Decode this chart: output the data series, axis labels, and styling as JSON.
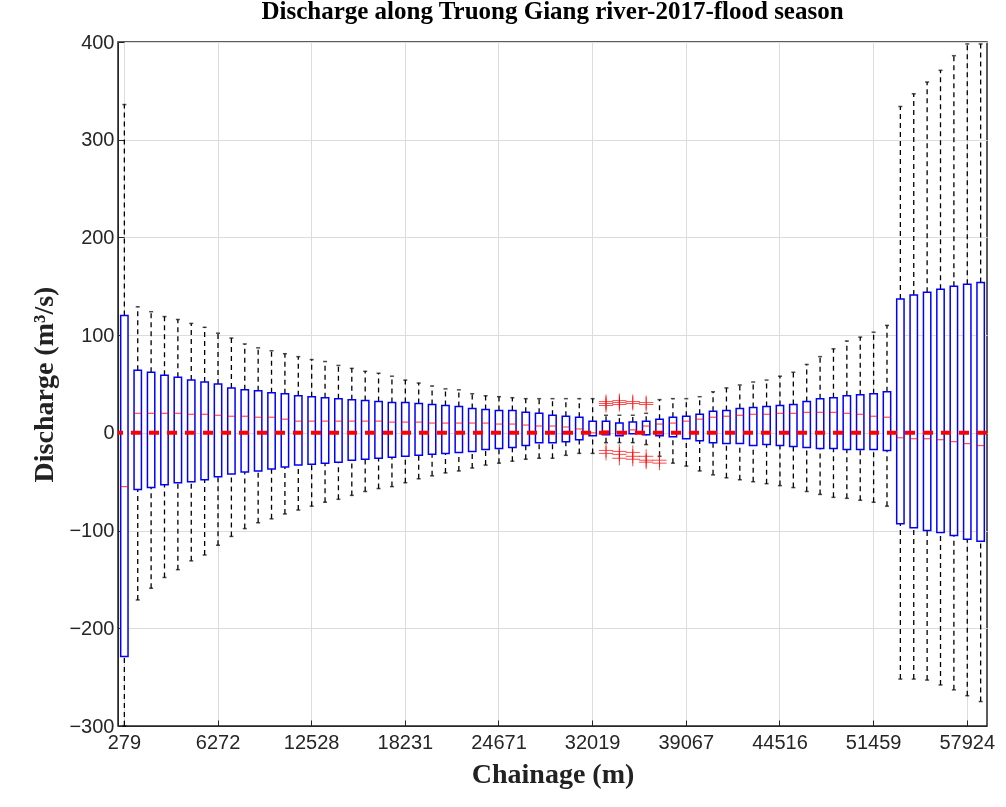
{
  "chart_data": {
    "type": "box",
    "title": "Discharge along Truong Giang river-2017-flood season",
    "xlabel": "Chainage (m)",
    "ylabel": "Discharge (m³/s)",
    "categories": [
      "279",
      null,
      null,
      null,
      null,
      null,
      null,
      "6272",
      null,
      null,
      null,
      null,
      null,
      null,
      "12528",
      null,
      null,
      null,
      null,
      null,
      null,
      "18231",
      null,
      null,
      null,
      null,
      null,
      null,
      "24671",
      null,
      null,
      null,
      null,
      null,
      null,
      "32019",
      null,
      null,
      null,
      null,
      null,
      null,
      "39067",
      null,
      null,
      null,
      null,
      null,
      null,
      "44516",
      null,
      null,
      null,
      null,
      null,
      null,
      "51459",
      null,
      null,
      null,
      null,
      null,
      null,
      "57924",
      null
    ],
    "ylim": [
      -300,
      400
    ],
    "yticks": [
      -300,
      -200,
      -100,
      0,
      100,
      200,
      300,
      400
    ],
    "grid": true,
    "marker": "cross",
    "ref_lines": [
      {
        "axis": "y",
        "value": 0,
        "color": "#ff0000",
        "line_style": "dashed"
      }
    ],
    "series": [
      {
        "color": "#0000ff",
        "boxes": [
          {
            "low": -300,
            "q1": -229,
            "median": -55,
            "q3": 120,
            "high": 336
          },
          {
            "low": -171,
            "q1": -58,
            "median": 20,
            "q3": 64,
            "high": 129
          },
          {
            "low": -159,
            "q1": -56,
            "median": 20,
            "q3": 62,
            "high": 124
          },
          {
            "low": -148,
            "q1": -53,
            "median": 20,
            "q3": 59,
            "high": 119
          },
          {
            "low": -140,
            "q1": -51,
            "median": 20,
            "q3": 57,
            "high": 116
          },
          {
            "low": -131,
            "q1": -50,
            "median": 19,
            "q3": 54,
            "high": 112
          },
          {
            "low": -125,
            "q1": -48,
            "median": 19,
            "q3": 52,
            "high": 108
          },
          {
            "low": -115,
            "q1": -45,
            "median": 18,
            "q3": 50,
            "high": 102
          },
          {
            "low": -106,
            "q1": -42,
            "median": 17,
            "q3": 46,
            "high": 97
          },
          {
            "low": -98,
            "q1": -40,
            "median": 17,
            "q3": 44,
            "high": 91
          },
          {
            "low": -92,
            "q1": -39,
            "median": 16,
            "q3": 43,
            "high": 87
          },
          {
            "low": -88,
            "q1": -37,
            "median": 16,
            "q3": 41,
            "high": 84
          },
          {
            "low": -83,
            "q1": -35,
            "median": 14,
            "q3": 40,
            "high": 81
          },
          {
            "low": -79,
            "q1": -33,
            "median": 12,
            "q3": 38,
            "high": 78
          },
          {
            "low": -75,
            "q1": -32,
            "median": 12,
            "q3": 37,
            "high": 75
          },
          {
            "low": -71,
            "q1": -31,
            "median": 12,
            "q3": 36,
            "high": 73
          },
          {
            "low": -68,
            "q1": -30,
            "median": 12,
            "q3": 35,
            "high": 69
          },
          {
            "low": -64,
            "q1": -28,
            "median": 12,
            "q3": 34,
            "high": 66
          },
          {
            "low": -60,
            "q1": -27,
            "median": 12,
            "q3": 33,
            "high": 63
          },
          {
            "low": -57,
            "q1": -26,
            "median": 12,
            "q3": 32,
            "high": 61
          },
          {
            "low": -55,
            "q1": -25,
            "median": 11,
            "q3": 31,
            "high": 58
          },
          {
            "low": -51,
            "q1": -24,
            "median": 11,
            "q3": 31,
            "high": 54
          },
          {
            "low": -47,
            "q1": -23,
            "median": 11,
            "q3": 30,
            "high": 51
          },
          {
            "low": -44,
            "q1": -22,
            "median": 10,
            "q3": 29,
            "high": 48
          },
          {
            "low": -41,
            "q1": -21,
            "median": 10,
            "q3": 28,
            "high": 45
          },
          {
            "low": -39,
            "q1": -20,
            "median": 10,
            "q3": 27,
            "high": 44
          },
          {
            "low": -36,
            "q1": -19,
            "median": 10,
            "q3": 25,
            "high": 40
          },
          {
            "low": -33,
            "q1": -17,
            "median": 10,
            "q3": 24,
            "high": 38
          },
          {
            "low": -31,
            "q1": -16,
            "median": 9,
            "q3": 23,
            "high": 37
          },
          {
            "low": -29,
            "q1": -15,
            "median": 9,
            "q3": 23,
            "high": 36
          },
          {
            "low": -27,
            "q1": -13,
            "median": 8,
            "q3": 21,
            "high": 35
          },
          {
            "low": -26,
            "q1": -10,
            "median": 7,
            "q3": 20,
            "high": 35
          },
          {
            "low": -26,
            "q1": -10,
            "median": 7,
            "q3": 18,
            "high": 35
          },
          {
            "low": -23,
            "q1": -9,
            "median": 6,
            "q3": 17,
            "high": 35
          },
          {
            "low": -21,
            "q1": -7,
            "median": 4,
            "q3": 16,
            "high": 35
          },
          {
            "low": -21,
            "q1": -3,
            "median": 0,
            "q3": 12,
            "high": 35
          },
          {
            "low": -10,
            "q1": -2,
            "median": 2,
            "q3": 12,
            "high": 18,
            "outliers": [
              32,
              30,
              28,
              -18,
              -21
            ]
          },
          {
            "low": -10,
            "q1": -3,
            "median": 1,
            "q3": 10,
            "high": 18,
            "outliers": [
              33,
              31,
              29,
              -19,
              -22,
              -26
            ]
          },
          {
            "low": -10,
            "q1": -1,
            "median": 3,
            "q3": 11,
            "high": 18,
            "outliers": [
              32,
              30,
              -20,
              -24,
              -27
            ]
          },
          {
            "low": -12,
            "q1": -2,
            "median": 7,
            "q3": 12,
            "high": 20,
            "outliers": [
              31,
              29,
              -24,
              -28,
              -30
            ]
          },
          {
            "low": -24,
            "q1": -3,
            "median": 9,
            "q3": 14,
            "high": 34,
            "outliers": [
              -28,
              -31
            ]
          },
          {
            "low": -31,
            "q1": -4,
            "median": 10,
            "q3": 16,
            "high": 35
          },
          {
            "low": -34,
            "q1": -6,
            "median": 12,
            "q3": 17,
            "high": 35
          },
          {
            "low": -39,
            "q1": -8,
            "median": 14,
            "q3": 19,
            "high": 37
          },
          {
            "low": -43,
            "q1": -10,
            "median": 16,
            "q3": 22,
            "high": 42
          },
          {
            "low": -46,
            "q1": -11,
            "median": 17,
            "q3": 23,
            "high": 46
          },
          {
            "low": -48,
            "q1": -11,
            "median": 18,
            "q3": 25,
            "high": 49
          },
          {
            "low": -50,
            "q1": -13,
            "median": 19,
            "q3": 26,
            "high": 52
          },
          {
            "low": -52,
            "q1": -12,
            "median": 19,
            "q3": 27,
            "high": 54
          },
          {
            "low": -54,
            "q1": -13,
            "median": 20,
            "q3": 28,
            "high": 58
          },
          {
            "low": -56,
            "q1": -14,
            "median": 20,
            "q3": 29,
            "high": 62
          },
          {
            "low": -60,
            "q1": -15,
            "median": 21,
            "q3": 32,
            "high": 70
          },
          {
            "low": -63,
            "q1": -16,
            "median": 21,
            "q3": 35,
            "high": 78
          },
          {
            "low": -66,
            "q1": -16,
            "median": 21,
            "q3": 36,
            "high": 86
          },
          {
            "low": -67,
            "q1": -17,
            "median": 20,
            "q3": 38,
            "high": 94
          },
          {
            "low": -69,
            "q1": -17,
            "median": 19,
            "q3": 39,
            "high": 98
          },
          {
            "low": -71,
            "q1": -17,
            "median": 17,
            "q3": 40,
            "high": 103
          },
          {
            "low": -75,
            "q1": -18,
            "median": 16,
            "q3": 42,
            "high": 110
          },
          {
            "low": -252,
            "q1": -93,
            "median": -5,
            "q3": 137,
            "high": 334
          },
          {
            "low": -252,
            "q1": -97,
            "median": -6,
            "q3": 141,
            "high": 347
          },
          {
            "low": -253,
            "q1": -100,
            "median": -6,
            "q3": 144,
            "high": 359
          },
          {
            "low": -258,
            "q1": -102,
            "median": -7,
            "q3": 147,
            "high": 371
          },
          {
            "low": -263,
            "q1": -105,
            "median": -9,
            "q3": 150,
            "high": 386
          },
          {
            "low": -269,
            "q1": -109,
            "median": -11,
            "q3": 152,
            "high": 398
          },
          {
            "low": -275,
            "q1": -111,
            "median": -13,
            "q3": 154,
            "high": 398
          }
        ]
      }
    ]
  }
}
